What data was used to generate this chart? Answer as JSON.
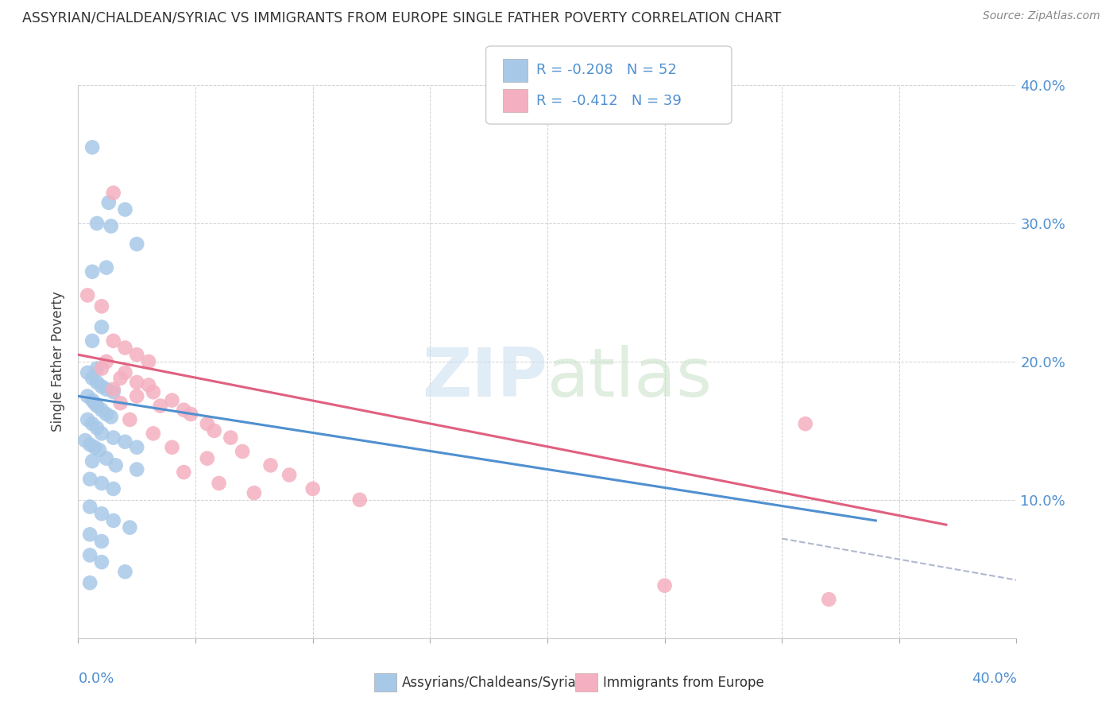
{
  "title": "ASSYRIAN/CHALDEAN/SYRIAC VS IMMIGRANTS FROM EUROPE SINGLE FATHER POVERTY CORRELATION CHART",
  "source": "Source: ZipAtlas.com",
  "ylabel": "Single Father Poverty",
  "xlim": [
    0.0,
    0.4
  ],
  "ylim": [
    0.0,
    0.4
  ],
  "blue_R": "-0.208",
  "blue_N": "52",
  "pink_R": "-0.412",
  "pink_N": "39",
  "blue_color": "#a8c8e8",
  "pink_color": "#f4b0c0",
  "blue_line_color": "#5090d0",
  "pink_line_color": "#e06080",
  "dash_color": "#b0b8d0",
  "label_color": "#5090d0",
  "blue_label": "Assyrians/Chaldeans/Syriacs",
  "pink_label": "Immigrants from Europe",
  "background_color": "#ffffff",
  "blue_scatter": [
    [
      0.006,
      0.355
    ],
    [
      0.013,
      0.315
    ],
    [
      0.02,
      0.31
    ],
    [
      0.008,
      0.3
    ],
    [
      0.014,
      0.298
    ],
    [
      0.025,
      0.285
    ],
    [
      0.006,
      0.265
    ],
    [
      0.012,
      0.268
    ],
    [
      0.006,
      0.215
    ],
    [
      0.01,
      0.225
    ],
    [
      0.008,
      0.195
    ],
    [
      0.004,
      0.192
    ],
    [
      0.006,
      0.188
    ],
    [
      0.008,
      0.185
    ],
    [
      0.01,
      0.182
    ],
    [
      0.012,
      0.18
    ],
    [
      0.015,
      0.178
    ],
    [
      0.004,
      0.175
    ],
    [
      0.006,
      0.172
    ],
    [
      0.007,
      0.17
    ],
    [
      0.008,
      0.168
    ],
    [
      0.01,
      0.165
    ],
    [
      0.012,
      0.162
    ],
    [
      0.014,
      0.16
    ],
    [
      0.004,
      0.158
    ],
    [
      0.006,
      0.155
    ],
    [
      0.008,
      0.152
    ],
    [
      0.01,
      0.148
    ],
    [
      0.015,
      0.145
    ],
    [
      0.003,
      0.143
    ],
    [
      0.005,
      0.14
    ],
    [
      0.007,
      0.138
    ],
    [
      0.009,
      0.136
    ],
    [
      0.02,
      0.142
    ],
    [
      0.025,
      0.138
    ],
    [
      0.006,
      0.128
    ],
    [
      0.012,
      0.13
    ],
    [
      0.016,
      0.125
    ],
    [
      0.025,
      0.122
    ],
    [
      0.005,
      0.115
    ],
    [
      0.01,
      0.112
    ],
    [
      0.015,
      0.108
    ],
    [
      0.005,
      0.095
    ],
    [
      0.01,
      0.09
    ],
    [
      0.015,
      0.085
    ],
    [
      0.022,
      0.08
    ],
    [
      0.005,
      0.075
    ],
    [
      0.01,
      0.07
    ],
    [
      0.005,
      0.06
    ],
    [
      0.01,
      0.055
    ],
    [
      0.02,
      0.048
    ],
    [
      0.005,
      0.04
    ]
  ],
  "pink_scatter": [
    [
      0.004,
      0.248
    ],
    [
      0.01,
      0.24
    ],
    [
      0.015,
      0.215
    ],
    [
      0.015,
      0.322
    ],
    [
      0.02,
      0.21
    ],
    [
      0.025,
      0.205
    ],
    [
      0.012,
      0.2
    ],
    [
      0.03,
      0.2
    ],
    [
      0.01,
      0.195
    ],
    [
      0.02,
      0.192
    ],
    [
      0.018,
      0.188
    ],
    [
      0.025,
      0.185
    ],
    [
      0.03,
      0.183
    ],
    [
      0.015,
      0.18
    ],
    [
      0.032,
      0.178
    ],
    [
      0.025,
      0.175
    ],
    [
      0.04,
      0.172
    ],
    [
      0.018,
      0.17
    ],
    [
      0.035,
      0.168
    ],
    [
      0.045,
      0.165
    ],
    [
      0.048,
      0.162
    ],
    [
      0.022,
      0.158
    ],
    [
      0.055,
      0.155
    ],
    [
      0.058,
      0.15
    ],
    [
      0.032,
      0.148
    ],
    [
      0.065,
      0.145
    ],
    [
      0.04,
      0.138
    ],
    [
      0.07,
      0.135
    ],
    [
      0.055,
      0.13
    ],
    [
      0.082,
      0.125
    ],
    [
      0.045,
      0.12
    ],
    [
      0.09,
      0.118
    ],
    [
      0.06,
      0.112
    ],
    [
      0.1,
      0.108
    ],
    [
      0.075,
      0.105
    ],
    [
      0.12,
      0.1
    ],
    [
      0.31,
      0.155
    ],
    [
      0.25,
      0.038
    ],
    [
      0.32,
      0.028
    ]
  ],
  "blue_trend_x": [
    0.0,
    0.34
  ],
  "blue_trend_y": [
    0.175,
    0.085
  ],
  "pink_trend_x": [
    0.0,
    0.37
  ],
  "pink_trend_y": [
    0.205,
    0.082
  ],
  "dashed_trend_x": [
    0.3,
    0.4
  ],
  "dashed_trend_y": [
    0.072,
    0.042
  ],
  "ytick_vals": [
    0.0,
    0.1,
    0.2,
    0.3,
    0.4
  ],
  "ytick_labels": [
    "",
    "10.0%",
    "20.0%",
    "30.0%",
    "40.0%"
  ],
  "xtick_vals": [
    0.0,
    0.05,
    0.1,
    0.15,
    0.2,
    0.25,
    0.3,
    0.35,
    0.4
  ]
}
